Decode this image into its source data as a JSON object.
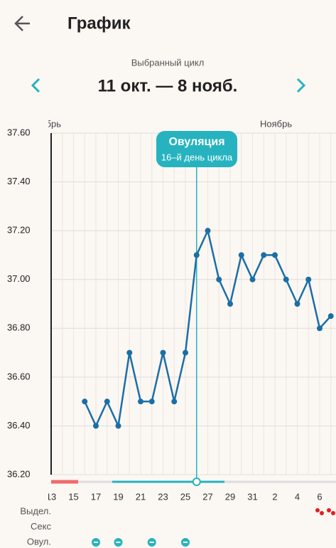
{
  "header": {
    "title": "График"
  },
  "cycle": {
    "caption": "Выбранный цикл",
    "range": "11 окт. — 8 нояб."
  },
  "chart_data": {
    "type": "line",
    "month_labels": [
      "Октябрь",
      "Ноябрь"
    ],
    "categories": [
      "13",
      null,
      "15",
      null,
      "17",
      null,
      "19",
      null,
      "21",
      null,
      "23",
      null,
      "25",
      null,
      "27",
      null,
      "29",
      null,
      "31",
      null,
      "2",
      null,
      "4",
      null,
      "6",
      null
    ],
    "values": [
      null,
      null,
      null,
      36.5,
      36.4,
      36.5,
      36.4,
      36.7,
      36.5,
      36.5,
      36.7,
      36.5,
      36.7,
      37.1,
      37.2,
      37.0,
      36.9,
      37.1,
      37.0,
      37.1,
      37.1,
      37.0,
      36.9,
      37.0,
      36.8,
      36.85
    ],
    "color": "#1b6ea6",
    "ylim": [
      36.2,
      37.6
    ],
    "yticks": [
      {
        "value": 36.2,
        "label": "36.20"
      },
      {
        "value": 36.4,
        "label": "36.40"
      },
      {
        "value": 36.6,
        "label": "36.60"
      },
      {
        "value": 36.8,
        "label": "36.80"
      },
      {
        "value": 37.0,
        "label": "37.00"
      },
      {
        "value": 37.2,
        "label": "37.20"
      },
      {
        "value": 37.4,
        "label": "37.40"
      },
      {
        "value": 37.6,
        "label": "37.60"
      }
    ],
    "grid": true,
    "annotation": {
      "title": "Овуляция",
      "subtitle": "16–й день цикла"
    }
  },
  "rows": [
    "Выдел.",
    "Секс",
    "Овул."
  ]
}
